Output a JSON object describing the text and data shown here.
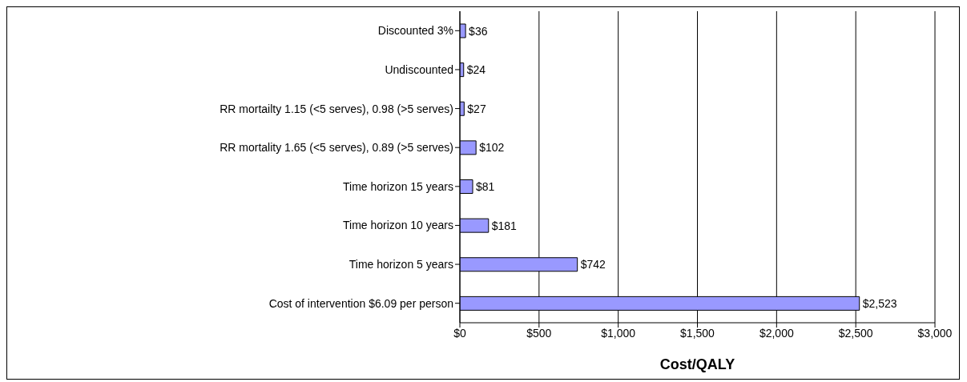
{
  "chart_data": {
    "type": "bar",
    "orientation": "horizontal",
    "xlabel": "Cost/QALY",
    "categories": [
      "Discounted 3%",
      "Undiscounted",
      "RR mortailty 1.15 (<5 serves), 0.98 (>5 serves)",
      "RR mortality 1.65 (<5 serves), 0.89 (>5 serves)",
      "Time horizon 15 years",
      "Time horizon 10 years",
      "Time horizon 5 years",
      "Cost of intervention $6.09 per person"
    ],
    "values": [
      36,
      24,
      27,
      102,
      81,
      181,
      742,
      2523
    ],
    "value_labels": [
      "$36",
      "$24",
      "$27",
      "$102",
      "$81",
      "$181",
      "$742",
      "$2,523"
    ],
    "color": "#9999ff",
    "xlim": [
      0,
      3000
    ],
    "xticks": [
      {
        "value": 0,
        "label": "$0"
      },
      {
        "value": 500,
        "label": "$500"
      },
      {
        "value": 1000,
        "label": "$1,000"
      },
      {
        "value": 1500,
        "label": "$1,500"
      },
      {
        "value": 2000,
        "label": "$2,000"
      },
      {
        "value": 2500,
        "label": "$2,500"
      },
      {
        "value": 3000,
        "label": "$3,000"
      }
    ],
    "grid": "x",
    "legend": false
  }
}
